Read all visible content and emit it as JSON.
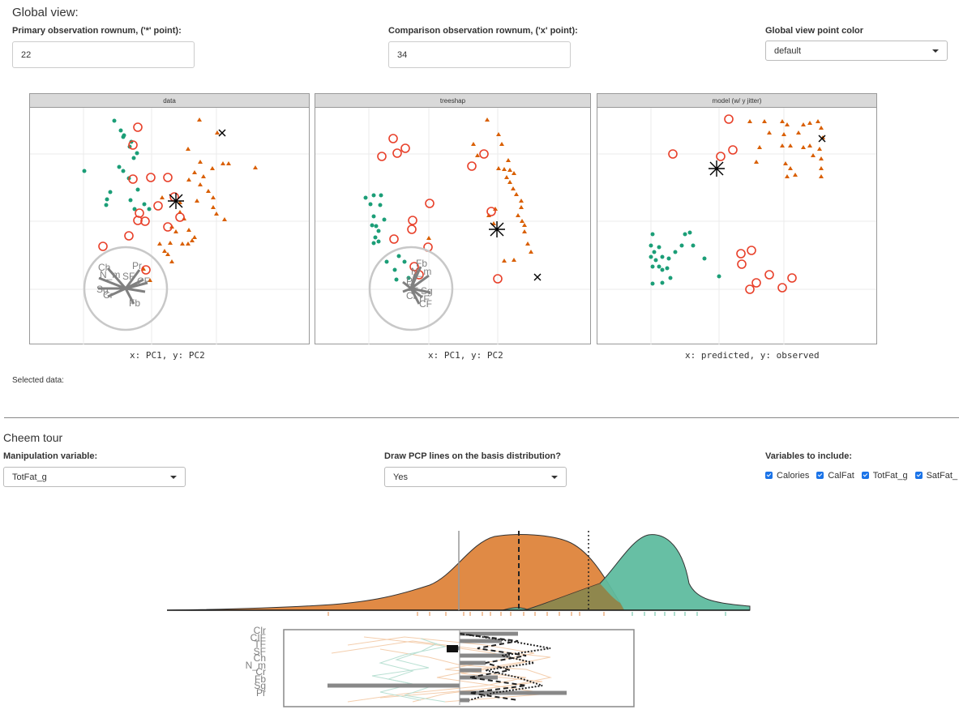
{
  "global": {
    "heading": "Global view:",
    "primary_label": "Primary observation rownum, ('*' point):",
    "primary_value": "22",
    "comparison_label": "Comparison observation rownum, ('x' point):",
    "comparison_value": "34",
    "color_label": "Global view point color",
    "color_value": "default",
    "panels": [
      {
        "strip": "data",
        "caption": "x: PC1, y: PC2"
      },
      {
        "strip": "treeshap",
        "caption": "x: PC1, y: PC2"
      },
      {
        "strip": "model (w/ y jitter)",
        "caption": "x: predicted, y: observed"
      }
    ],
    "selected_label": "Selected data:"
  },
  "colors": {
    "green": "#1b9e77",
    "orange": "#d95f02",
    "red": "#e8402a",
    "density_orange": "#e08a45",
    "density_green": "#5fbc9f"
  },
  "tour": {
    "heading": "Cheem tour",
    "manip_label": "Manipulation variable:",
    "manip_value": "TotFat_g",
    "pcp_label": "Draw PCP lines on the basis distribution?",
    "pcp_value": "Yes",
    "vars_label": "Variables to include:",
    "vars": [
      "Calories",
      "CalFat",
      "TotFat_g",
      "SatFat_"
    ],
    "axis_labels_left": [
      "Cl",
      "N_m",
      "Sg",
      "Cr",
      "Ch",
      "Pr",
      "SF",
      "CF",
      "Fb"
    ],
    "axis_labels_right": [
      "Fb",
      "N_m",
      "Pr",
      "SF",
      "Sg",
      "Cl",
      "TF",
      "CF"
    ],
    "pcp_vars": [
      "Clr",
      "CIF",
      "TF",
      "SF",
      "Ch",
      "N_m",
      "Cr",
      "Fb",
      "Sg",
      "Pr"
    ]
  }
}
